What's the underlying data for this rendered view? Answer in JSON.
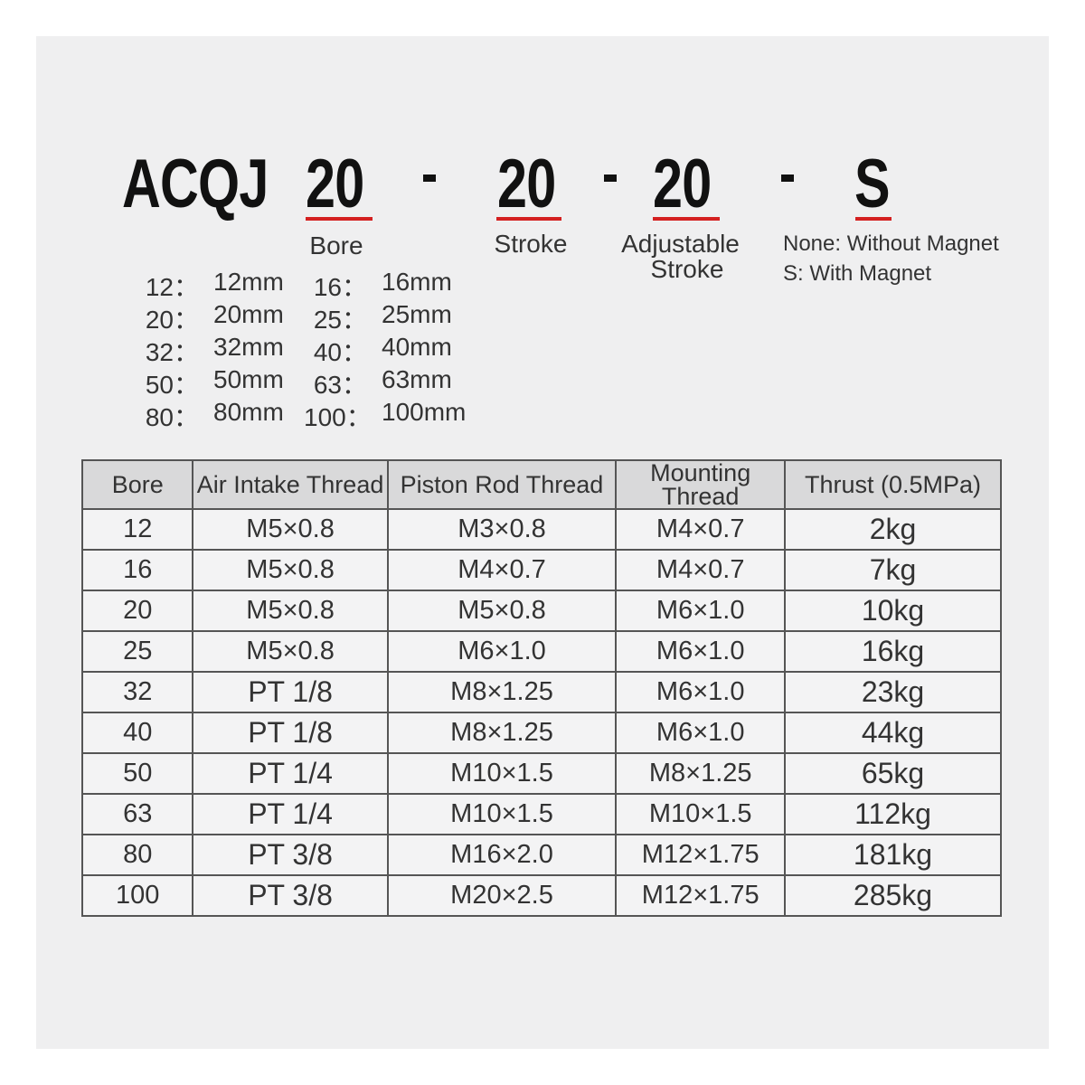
{
  "model_code": {
    "prefix": "ACQJ",
    "bore": "20",
    "stroke": "20",
    "adjustable_stroke": "20",
    "magnet": "S",
    "separator": "-",
    "underline_color": "#d42020"
  },
  "labels": {
    "bore": "Bore",
    "stroke": "Stroke",
    "adjustable_stroke_1": "Adjustable",
    "adjustable_stroke_2": "Stroke",
    "magnet_none": "None: Without Magnet",
    "magnet_s": "S: With Magnet"
  },
  "bore_options": [
    [
      {
        "k": "12：",
        "v": "12mm"
      },
      {
        "k": "16：",
        "v": "16mm"
      }
    ],
    [
      {
        "k": "20：",
        "v": "20mm"
      },
      {
        "k": "25：",
        "v": "25mm"
      }
    ],
    [
      {
        "k": "32：",
        "v": "32mm"
      },
      {
        "k": "40：",
        "v": "40mm"
      }
    ],
    [
      {
        "k": "50：",
        "v": "50mm"
      },
      {
        "k": "63：",
        "v": "63mm"
      }
    ],
    [
      {
        "k": "80：",
        "v": "80mm"
      },
      {
        "k": "100：",
        "v": "100mm"
      }
    ]
  ],
  "table": {
    "headers": [
      "Bore",
      "Air Intake Thread",
      "Piston Rod Thread",
      "Mounting Thread",
      "Thrust (0.5MPa)"
    ],
    "rows": [
      [
        "12",
        "M5×0.8",
        "M3×0.8",
        "M4×0.7",
        "2kg"
      ],
      [
        "16",
        "M5×0.8",
        "M4×0.7",
        "M4×0.7",
        "7kg"
      ],
      [
        "20",
        "M5×0.8",
        "M5×0.8",
        "M6×1.0",
        "10kg"
      ],
      [
        "25",
        "M5×0.8",
        "M6×1.0",
        "M6×1.0",
        "16kg"
      ],
      [
        "32",
        "PT 1/8",
        "M8×1.25",
        "M6×1.0",
        "23kg"
      ],
      [
        "40",
        "PT 1/8",
        "M8×1.25",
        "M6×1.0",
        "44kg"
      ],
      [
        "50",
        "PT 1/4",
        "M10×1.5",
        "M8×1.25",
        "65kg"
      ],
      [
        "63",
        "PT 1/4",
        "M10×1.5",
        "M10×1.5",
        "112kg"
      ],
      [
        "80",
        "PT 3/8",
        "M16×2.0",
        "M12×1.75",
        "181kg"
      ],
      [
        "100",
        "PT 3/8",
        "M20×2.5",
        "M12×1.75",
        "285kg"
      ]
    ]
  }
}
